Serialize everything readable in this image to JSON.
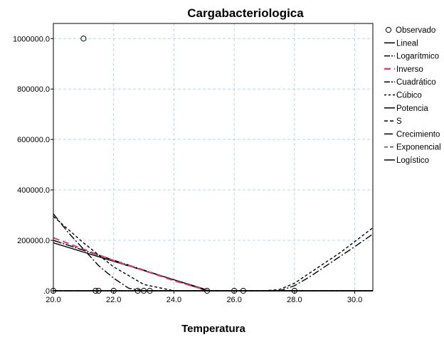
{
  "chart_data": {
    "type": "scatter",
    "title": "Cargabacteriologica",
    "xlabel": "Temperatura",
    "ylabel": "",
    "xlim": [
      20.0,
      30.6
    ],
    "ylim": [
      0,
      1060000
    ],
    "x_ticks": [
      20.0,
      22.0,
      24.0,
      26.0,
      28.0,
      30.0
    ],
    "x_tick_labels": [
      "20.0",
      "22.0",
      "24.0",
      "26.0",
      "28.0",
      "30.0"
    ],
    "y_ticks": [
      0,
      200000,
      400000,
      600000,
      800000,
      1000000
    ],
    "y_tick_labels": [
      ".0",
      "200000.0",
      "400000.0",
      "600000.0",
      "800000.0",
      "1000000.0"
    ],
    "grid": true,
    "legend_position": "right",
    "observed": {
      "name": "Observado",
      "x": [
        21.0,
        20.0,
        21.4,
        21.5,
        22.0,
        22.8,
        23.0,
        23.2,
        25.1,
        26.0,
        26.3,
        28.0
      ],
      "y": [
        1000000,
        0,
        0,
        0,
        0,
        0,
        0,
        0,
        0,
        0,
        0,
        0
      ]
    },
    "series": [
      {
        "name": "Lineal",
        "color": "#000000",
        "dash": "",
        "x": [
          20.0,
          25.2,
          30.6
        ],
        "y": [
          190000,
          0,
          0
        ]
      },
      {
        "name": "Logarítmico",
        "color": "#000000",
        "dash": "12 2 2 2",
        "x": [
          20.0,
          25.1,
          30.6
        ],
        "y": [
          200000,
          0,
          0
        ]
      },
      {
        "name": "Inverso",
        "color": "#d6437c",
        "dash": "9 5",
        "x": [
          20.0,
          21.0,
          22.0,
          23.0,
          24.0,
          25.0,
          25.2,
          30.6
        ],
        "y": [
          210000,
          165000,
          120000,
          80000,
          40000,
          5000,
          0,
          0
        ]
      },
      {
        "name": "Cuadrático",
        "color": "#000000",
        "dash": "10 3 2 3",
        "x": [
          20.0,
          20.5,
          21.0,
          21.5,
          22.0,
          22.5,
          23.0,
          23.5,
          24.0,
          24.5,
          25.0,
          25.5,
          26.0,
          26.5,
          27.0,
          27.5,
          28.0,
          28.5,
          29.0,
          29.5,
          30.0,
          30.6
        ],
        "y": [
          305000,
          230000,
          165000,
          100000,
          50000,
          10000,
          0,
          0,
          0,
          0,
          0,
          0,
          0,
          0,
          0,
          0,
          20000,
          55000,
          95000,
          135000,
          175000,
          225000
        ]
      },
      {
        "name": "Cúbico",
        "color": "#000000",
        "dash": "4 3",
        "x": [
          20.0,
          21.0,
          22.0,
          23.0,
          24.0,
          25.0,
          26.0,
          27.0,
          27.5,
          28.0,
          28.5,
          29.0,
          29.5,
          30.0,
          30.6
        ],
        "y": [
          295000,
          190000,
          95000,
          25000,
          0,
          0,
          0,
          0,
          5000,
          30000,
          70000,
          110000,
          150000,
          195000,
          250000
        ]
      },
      {
        "name": "Potencia",
        "color": "#000000",
        "dash": "",
        "x": [
          20.0,
          30.6
        ],
        "y": [
          0,
          0
        ]
      },
      {
        "name": "S",
        "color": "#000000",
        "dash": "5 3",
        "x": [
          20.0,
          30.6
        ],
        "y": [
          0,
          0
        ]
      },
      {
        "name": "Crecimiento",
        "color": "#000000",
        "dash": "12 3",
        "x": [
          20.0,
          30.6
        ],
        "y": [
          0,
          0
        ]
      },
      {
        "name": "Exponencial",
        "color": "#555555",
        "dash": "5 3",
        "x": [
          20.0,
          30.6
        ],
        "y": [
          0,
          0
        ]
      },
      {
        "name": "Logístico",
        "color": "#000000",
        "dash": "",
        "x": [
          20.0,
          30.6
        ],
        "y": [
          0,
          0
        ]
      }
    ],
    "colors": {
      "grid": "#b8d4ee",
      "background": "#ffffff",
      "inverso": "#d6437c"
    }
  }
}
